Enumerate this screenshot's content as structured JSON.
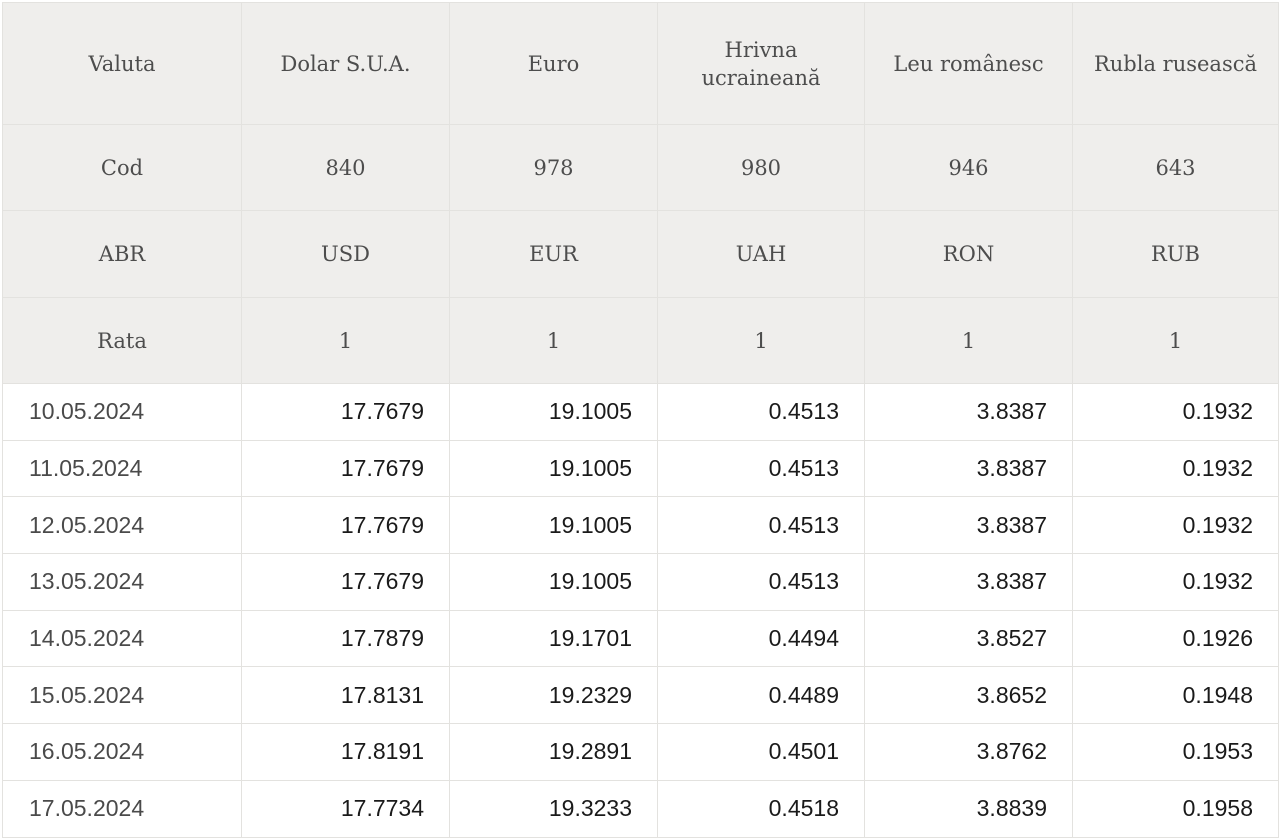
{
  "table": {
    "header_rows": [
      {
        "label": "Valuta",
        "cells": [
          "Dolar S.U.A.",
          "Euro",
          "Hrivna ucraineană",
          "Leu românesc",
          "Rubla rusească"
        ]
      },
      {
        "label": "Cod",
        "cells": [
          "840",
          "978",
          "980",
          "946",
          "643"
        ]
      },
      {
        "label": "ABR",
        "cells": [
          "USD",
          "EUR",
          "UAH",
          "RON",
          "RUB"
        ]
      },
      {
        "label": "Rata",
        "cells": [
          "1",
          "1",
          "1",
          "1",
          "1"
        ]
      }
    ],
    "rows": [
      {
        "date": "10.05.2024",
        "values": [
          "17.7679",
          "19.1005",
          "0.4513",
          "3.8387",
          "0.1932"
        ]
      },
      {
        "date": "11.05.2024",
        "values": [
          "17.7679",
          "19.1005",
          "0.4513",
          "3.8387",
          "0.1932"
        ]
      },
      {
        "date": "12.05.2024",
        "values": [
          "17.7679",
          "19.1005",
          "0.4513",
          "3.8387",
          "0.1932"
        ]
      },
      {
        "date": "13.05.2024",
        "values": [
          "17.7679",
          "19.1005",
          "0.4513",
          "3.8387",
          "0.1932"
        ]
      },
      {
        "date": "14.05.2024",
        "values": [
          "17.7879",
          "19.1701",
          "0.4494",
          "3.8527",
          "0.1926"
        ]
      },
      {
        "date": "15.05.2024",
        "values": [
          "17.8131",
          "19.2329",
          "0.4489",
          "3.8652",
          "0.1948"
        ]
      },
      {
        "date": "16.05.2024",
        "values": [
          "17.8191",
          "19.2891",
          "0.4501",
          "3.8762",
          "0.1953"
        ]
      },
      {
        "date": "17.05.2024",
        "values": [
          "17.7734",
          "19.3233",
          "0.4518",
          "3.8839",
          "0.1958"
        ]
      }
    ]
  }
}
